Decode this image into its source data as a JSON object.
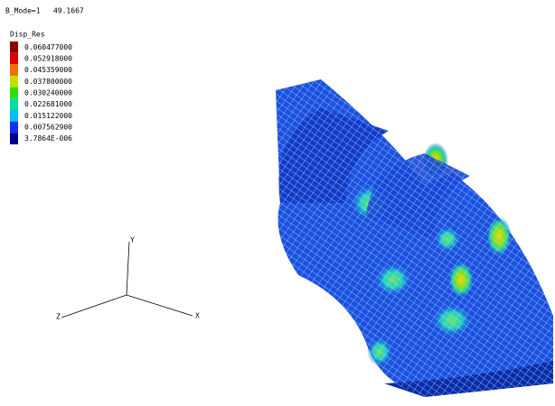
{
  "header": {
    "mode_label": "B_Mode=1   49.1667"
  },
  "legend": {
    "title": "Disp_Res",
    "entries": [
      "0.060477000",
      "0.052918000",
      "0.045359000",
      "0.037800000",
      "0.030240000",
      "0.022681000",
      "0.015122000",
      "0.007562900",
      "3.7864E-006"
    ]
  },
  "axes": {
    "y": "Y",
    "x": "X",
    "z": "Z"
  }
}
